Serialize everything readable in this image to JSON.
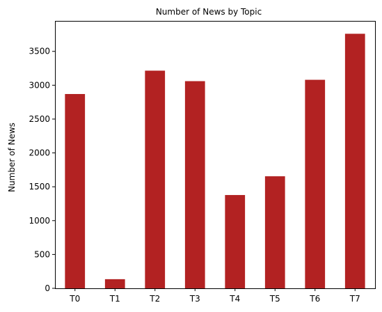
{
  "chart_data": {
    "type": "bar",
    "title": "Number of News by  Topic",
    "xlabel": "",
    "ylabel": "Number of News",
    "categories": [
      "T0",
      "T1",
      "T2",
      "T3",
      "T4",
      "T5",
      "T6",
      "T7"
    ],
    "values": [
      2870,
      135,
      3215,
      3060,
      1378,
      1655,
      3080,
      3760
    ],
    "ylim": [
      0,
      3950
    ],
    "yticks": [
      0,
      500,
      1000,
      1500,
      2000,
      2500,
      3000,
      3500
    ],
    "bar_color": "#b22222",
    "grid": false,
    "legend": false
  }
}
